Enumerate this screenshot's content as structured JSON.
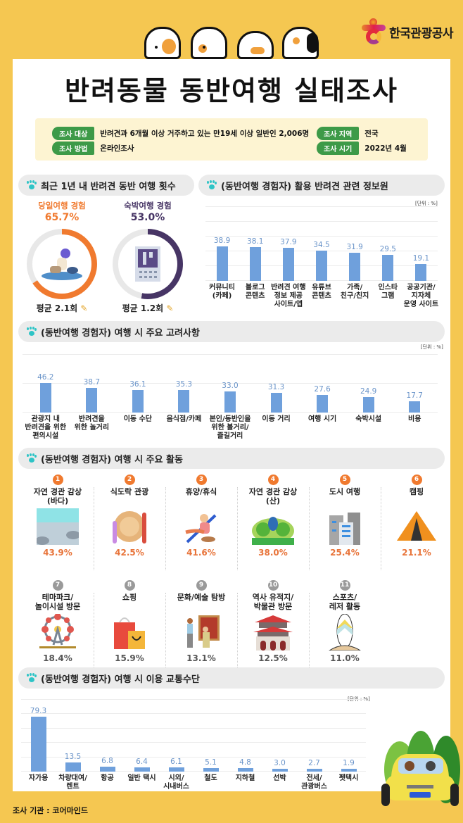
{
  "header": {
    "logo_text": "한국관광공사",
    "title": "반려동물 동반여행 실태조사"
  },
  "survey_info": {
    "target_label": "조사 대상",
    "target_value": "반려견과 6개월 이상 거주하고 있는 만19세 이상 일반인 2,006명",
    "method_label": "조사 방법",
    "method_value": "온라인조사",
    "region_label": "조사 지역",
    "region_value": "전국",
    "period_label": "조사 시기",
    "period_value": "2022년 4월"
  },
  "sections": {
    "trip_count": "최근 1년 내 반려견 동반 여행 횟수",
    "info_source": "(동반여행 경험자) 활용 반려견 관련 정보원",
    "considerations": "(동반여행 경험자) 여행 시 주요 고려사항",
    "activities": "(동반여행 경험자) 여행 시 주요 활동",
    "transport": "(동반여행 경험자) 여행 시 이용 교통수단"
  },
  "unit_label": "[단위 : %]",
  "trip_count": {
    "day_trip": {
      "label": "당일여행 경험",
      "pct": "65.7%",
      "avg": "평균 2.1회",
      "color": "#f07a2f"
    },
    "overnight": {
      "label": "숙박여행 경험",
      "pct": "53.0%",
      "avg": "평균 1.2회",
      "color": "#473565"
    }
  },
  "activities": [
    {
      "rank": "1",
      "name": "자연 경관 감상\n(바다)",
      "pct": "43.9%",
      "icon": "sea-icon"
    },
    {
      "rank": "2",
      "name": "식도락 관광",
      "pct": "42.5%",
      "icon": "dining-icon"
    },
    {
      "rank": "3",
      "name": "휴양/휴식",
      "pct": "41.6%",
      "icon": "resting-icon"
    },
    {
      "rank": "4",
      "name": "자연 경관 감상\n(산)",
      "pct": "38.0%",
      "icon": "forest-icon"
    },
    {
      "rank": "5",
      "name": "도시 여행",
      "pct": "25.4%",
      "icon": "city-icon"
    },
    {
      "rank": "6",
      "name": "캠핑",
      "pct": "21.1%",
      "icon": "tent-icon"
    },
    {
      "rank": "7",
      "name": "테마파크/\n놀이시설 방문",
      "pct": "18.4%",
      "icon": "ferris-wheel-icon"
    },
    {
      "rank": "8",
      "name": "쇼핑",
      "pct": "15.9%",
      "icon": "shopping-bag-icon"
    },
    {
      "rank": "9",
      "name": "문화/예술 탐방",
      "pct": "13.1%",
      "icon": "art-gallery-icon"
    },
    {
      "rank": "10",
      "name": "역사 유적지/\n박물관 방문",
      "pct": "12.5%",
      "icon": "palace-icon"
    },
    {
      "rank": "11",
      "name": "스포츠/\n레저 활동",
      "pct": "11.0%",
      "icon": "surfboard-icon"
    }
  ],
  "footer": {
    "source": "조사 기관 : 코어마인드"
  },
  "chart_data": [
    {
      "type": "donut",
      "title": "최근 1년 내 반려견 동반 여행 횟수",
      "categories": [
        "당일여행 경험",
        "숙박여행 경험"
      ],
      "values": [
        65.7,
        53.0
      ],
      "averages": [
        "평균 2.1회",
        "평균 1.2회"
      ]
    },
    {
      "type": "bar",
      "title": "(동반여행 경험자) 활용 반려견 관련 정보원",
      "unit": "[단위 : %]",
      "categories": [
        "커뮤니티\n(카페)",
        "블로그\n콘텐츠",
        "반려견 여행\n정보 제공\n사이트/앱",
        "유튜브\n콘텐츠",
        "가족/\n친구/친지",
        "인스타\n그램",
        "공공기관/\n지자체\n운영 사이트"
      ],
      "values": [
        38.9,
        38.1,
        37.9,
        34.5,
        31.9,
        29.5,
        19.1
      ],
      "ylim": [
        0,
        80
      ]
    },
    {
      "type": "bar",
      "title": "(동반여행 경험자) 여행 시 주요 고려사항",
      "unit": "[단위 : %]",
      "categories": [
        "관광지 내\n반려견을 위한\n편의시설",
        "반려견을\n위한 놀거리",
        "이동 수단",
        "음식점/카페",
        "본인/동반인을\n위한 볼거리/\n즐길거리",
        "이동 거리",
        "여행 시기",
        "숙박시설",
        "비용"
      ],
      "values": [
        46.2,
        38.7,
        36.1,
        35.3,
        33.0,
        31.3,
        27.6,
        24.9,
        17.7
      ],
      "ylim": [
        0,
        100
      ]
    },
    {
      "type": "bar",
      "title": "(동반여행 경험자) 여행 시 이용 교통수단",
      "unit": "[단위 : %]",
      "categories": [
        "자가용",
        "차량대여/\n렌트",
        "항공",
        "일반 택시",
        "시외/\n시내버스",
        "철도",
        "지하철",
        "선박",
        "전세/\n관광버스",
        "펫택시"
      ],
      "values": [
        79.3,
        13.5,
        6.8,
        6.4,
        6.1,
        5.1,
        4.8,
        3.0,
        2.7,
        1.9
      ],
      "ylim": [
        0,
        100
      ]
    }
  ]
}
